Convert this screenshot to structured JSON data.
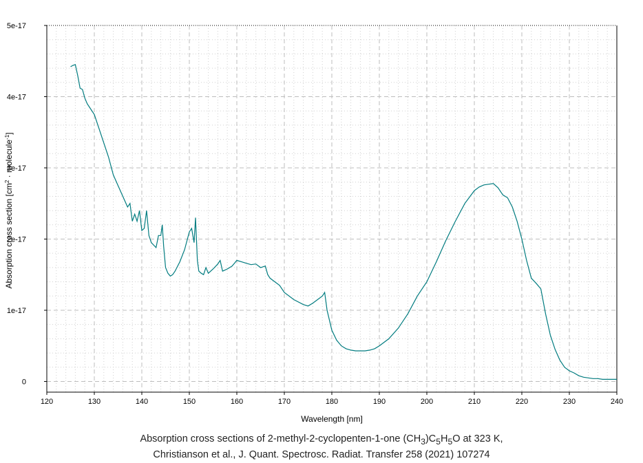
{
  "chart_data": {
    "type": "line",
    "title": "",
    "xlabel": "Wavelength [nm]",
    "ylabel_parts": {
      "before": "Absorption cross section [cm",
      "sup1": "2",
      "mid": " · molecule",
      "sup2": "-1",
      "after": "]"
    },
    "xlim": [
      120,
      240
    ],
    "ylim": [
      -1.5e-18,
      5e-17
    ],
    "x_ticks": [
      120,
      130,
      140,
      150,
      160,
      170,
      180,
      190,
      200,
      210,
      220,
      230,
      240
    ],
    "x_tick_labels": [
      "120",
      "130",
      "140",
      "150",
      "160",
      "170",
      "180",
      "190",
      "200",
      "210",
      "220",
      "230",
      "240"
    ],
    "y_ticks": [
      0,
      1e-17,
      2e-17,
      3e-17,
      4e-17,
      5e-17
    ],
    "y_tick_labels": [
      "0",
      "1e-17",
      "2e-17",
      "3e-17",
      "4e-17",
      "5e-17"
    ],
    "grid": true,
    "line_color": "#007b7f",
    "series": [
      {
        "x": [
          125.0,
          125.5,
          126.0,
          126.5,
          127.0,
          127.5,
          128.0,
          128.5,
          129.0,
          130.0,
          131.0,
          132.0,
          133.0,
          134.0,
          135.0,
          136.0,
          137.0,
          137.5,
          138.0,
          138.5,
          139.0,
          139.5,
          140.0,
          140.5,
          141.0,
          141.5,
          142.0,
          143.0,
          143.5,
          144.0,
          144.3,
          144.6,
          145.0,
          145.5,
          146.0,
          146.5,
          147.0,
          148.0,
          149.0,
          150.0,
          150.5,
          151.0,
          151.3,
          151.7,
          152.0,
          152.5,
          153.0,
          153.5,
          154.0,
          155.0,
          156.0,
          156.5,
          157.0,
          158.0,
          159.0,
          160.0,
          161.0,
          162.0,
          163.0,
          164.0,
          165.0,
          166.0,
          166.5,
          167.0,
          168.0,
          169.0,
          170.0,
          172.0,
          174.0,
          175.0,
          176.0,
          177.0,
          178.0,
          178.5,
          179.0,
          180.0,
          181.0,
          182.0,
          183.0,
          184.0,
          185.0,
          186.0,
          187.0,
          188.0,
          189.0,
          190.0,
          192.0,
          194.0,
          196.0,
          198.0,
          200.0,
          202.0,
          204.0,
          206.0,
          208.0,
          210.0,
          211.0,
          212.0,
          213.0,
          214.0,
          215.0,
          216.0,
          217.0,
          218.0,
          219.0,
          220.0,
          221.0,
          222.0,
          223.0,
          224.0,
          225.0,
          226.0,
          227.0,
          228.0,
          229.0,
          230.0,
          231.0,
          232.0,
          233.0,
          234.0,
          235.0,
          236.0,
          237.0,
          238.0,
          240.0
        ],
        "y": [
          4.42e-17,
          4.44e-17,
          4.45e-17,
          4.3e-17,
          4.12e-17,
          4.1e-17,
          3.98e-17,
          3.9e-17,
          3.85e-17,
          3.75e-17,
          3.55e-17,
          3.35e-17,
          3.15e-17,
          2.9e-17,
          2.75e-17,
          2.6e-17,
          2.45e-17,
          2.5e-17,
          2.25e-17,
          2.35e-17,
          2.25e-17,
          2.4e-17,
          2.12e-17,
          2.15e-17,
          2.4e-17,
          2.05e-17,
          1.95e-17,
          1.88e-17,
          2.05e-17,
          2.05e-17,
          2.2e-17,
          1.9e-17,
          1.6e-17,
          1.52e-17,
          1.48e-17,
          1.5e-17,
          1.55e-17,
          1.68e-17,
          1.85e-17,
          2.1e-17,
          2.15e-17,
          1.95e-17,
          2.3e-17,
          1.7e-17,
          1.55e-17,
          1.52e-17,
          1.5e-17,
          1.6e-17,
          1.52e-17,
          1.58e-17,
          1.65e-17,
          1.7e-17,
          1.55e-17,
          1.58e-17,
          1.62e-17,
          1.7e-17,
          1.68e-17,
          1.66e-17,
          1.64e-17,
          1.65e-17,
          1.6e-17,
          1.62e-17,
          1.5e-17,
          1.45e-17,
          1.4e-17,
          1.35e-17,
          1.25e-17,
          1.15e-17,
          1.08e-17,
          1.06e-17,
          1.1e-17,
          1.15e-17,
          1.2e-17,
          1.25e-17,
          1e-17,
          7.2e-18,
          5.8e-18,
          5e-18,
          4.6e-18,
          4.4e-18,
          4.3e-18,
          4.3e-18,
          4.3e-18,
          4.4e-18,
          4.6e-18,
          5e-18,
          6e-18,
          7.5e-18,
          9.5e-18,
          1.2e-17,
          1.4e-17,
          1.68e-17,
          1.98e-17,
          2.25e-17,
          2.5e-17,
          2.68e-17,
          2.73e-17,
          2.76e-17,
          2.77e-17,
          2.78e-17,
          2.72e-17,
          2.62e-17,
          2.58e-17,
          2.45e-17,
          2.25e-17,
          2e-17,
          1.7e-17,
          1.45e-17,
          1.38e-17,
          1.3e-17,
          9.5e-18,
          6.5e-18,
          4.5e-18,
          3e-18,
          2e-18,
          1.5e-18,
          1.2e-18,
          8e-19,
          6e-19,
          5e-19,
          4e-19,
          4e-19,
          3e-19,
          3e-19,
          3e-19
        ]
      }
    ]
  },
  "caption": {
    "line1_prefix": "Absorption cross sections of 2-methyl-2-cyclopenten-1-one (CH",
    "line1_sub1": "3",
    "line1_mid1": ")C",
    "line1_sub2": "5",
    "line1_mid2": "H",
    "line1_sub3": "5",
    "line1_suffix": "O at 323 K,",
    "line2": "Christianson et al., J. Quant. Spectrosc. Radiat. Transfer 258 (2021) 107274"
  }
}
